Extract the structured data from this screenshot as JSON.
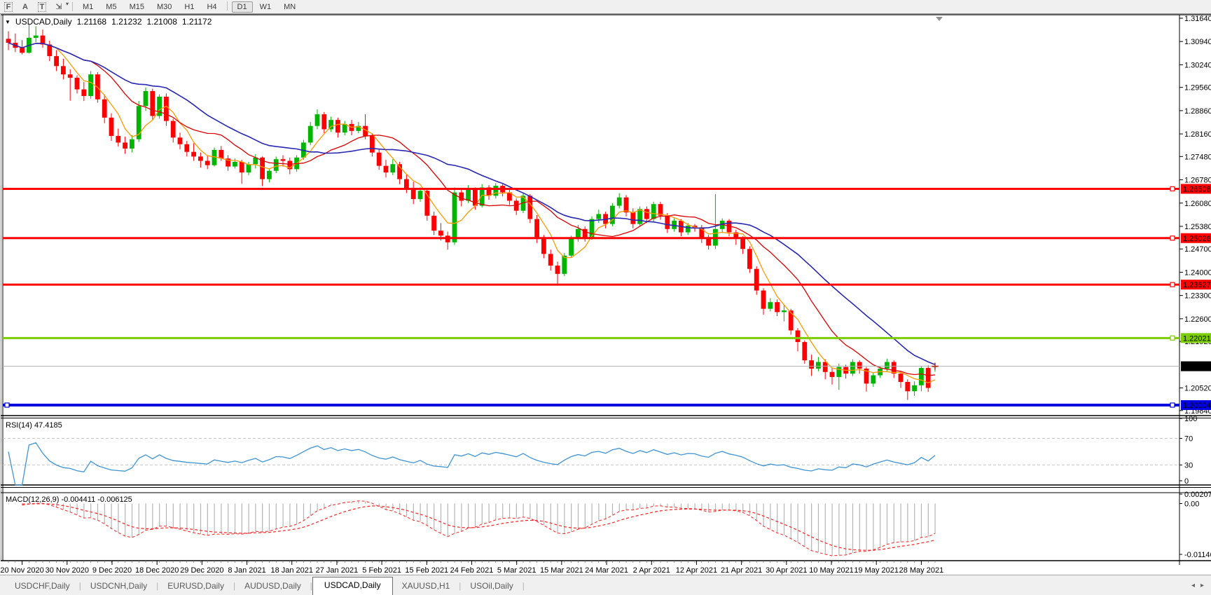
{
  "toolbar": {
    "tools": [
      {
        "name": "fibonacci-tool",
        "glyph": "F"
      },
      {
        "name": "text-tool",
        "glyph": "A"
      },
      {
        "name": "label-tool",
        "glyph": "T"
      },
      {
        "name": "arrows-tool",
        "glyph": "⇲"
      }
    ],
    "dropdown_glyph": "▾",
    "timeframes": [
      "M1",
      "M5",
      "M15",
      "M30",
      "H1",
      "H4",
      "D1",
      "W1",
      "MN"
    ],
    "active_timeframe": "D1"
  },
  "chart_header": {
    "dropdown_glyph": "▼",
    "symbol": "USDCAD,Daily",
    "open": "1.21168",
    "high": "1.21232",
    "low": "1.21008",
    "close": "1.21172"
  },
  "indicator_labels": {
    "rsi": "RSI(14) 47.4185",
    "macd": "MACD(12,26,9) -0.004411 -0.006125"
  },
  "tabs": {
    "items": [
      "USDCHF,Daily",
      "USDCNH,Daily",
      "EURUSD,Daily",
      "AUDUSD,Daily",
      "USDCAD,Daily",
      "XAUUSD,H1",
      "USOil,Daily"
    ],
    "active": "USDCAD,Daily",
    "scroll_left_glyph": "◂",
    "scroll_right_glyph": "▸"
  },
  "chart_data": {
    "type": "candlestick",
    "symbol": "USDCAD",
    "timeframe": "Daily",
    "ylim": [
      1.19697,
      1.31757
    ],
    "price_ticks": [
      "1.31640",
      "1.30940",
      "1.30240",
      "1.29560",
      "1.28860",
      "1.28160",
      "1.27480",
      "1.26780",
      "1.26080",
      "1.25380",
      "1.24700",
      "1.24000",
      "1.23300",
      "1.22600",
      "1.21920",
      "1.20520",
      "1.19840"
    ],
    "x_axis_labels": [
      "20 Nov 2020",
      "30 Nov 2020",
      "9 Dec 2020",
      "18 Dec 2020",
      "29 Dec 2020",
      "8 Jan 2021",
      "18 Jan 2021",
      "27 Jan 2021",
      "5 Feb 2021",
      "15 Feb 2021",
      "24 Feb 2021",
      "5 Mar 2021",
      "15 Mar 2021",
      "24 Mar 2021",
      "2 Apr 2021",
      "12 Apr 2021",
      "21 Apr 2021",
      "30 Apr 2021",
      "10 May 2021",
      "19 May 2021",
      "28 May 2021"
    ],
    "levels": [
      {
        "price": 1.26508,
        "label": "1.26508",
        "color": "#fe0000",
        "width": 3
      },
      {
        "price": 1.25026,
        "label": "1.25026",
        "color": "#fe0000",
        "width": 3
      },
      {
        "price": 1.23627,
        "label": "1.23627",
        "color": "#fe0000",
        "width": 3
      },
      {
        "price": 1.22021,
        "label": "1.22021",
        "color": "#7ccd00",
        "width": 3
      },
      {
        "price": 1.20004,
        "label": "1.20004",
        "color": "#0000e0",
        "width": 4
      }
    ],
    "current_price": {
      "value": 1.21172,
      "label": "1.21172"
    },
    "candles": [
      [
        1.3102,
        1.3125,
        1.3068,
        1.309
      ],
      [
        1.309,
        1.3118,
        1.3062,
        1.3075
      ],
      [
        1.3075,
        1.3098,
        1.3055,
        1.306
      ],
      [
        1.306,
        1.3145,
        1.3058,
        1.3105
      ],
      [
        1.3105,
        1.314,
        1.3092,
        1.3112
      ],
      [
        1.3112,
        1.313,
        1.3075,
        1.3085
      ],
      [
        1.3085,
        1.3096,
        1.3035,
        1.305
      ],
      [
        1.305,
        1.3068,
        1.3005,
        1.302
      ],
      [
        1.302,
        1.3042,
        1.298,
        1.2995
      ],
      [
        1.2995,
        1.301,
        1.2916,
        1.2985
      ],
      [
        1.2985,
        1.2992,
        1.2938,
        1.295
      ],
      [
        1.295,
        1.2972,
        1.2915,
        1.293
      ],
      [
        1.293,
        1.3005,
        1.2922,
        1.2995
      ],
      [
        1.2995,
        1.3002,
        1.291,
        1.292
      ],
      [
        1.292,
        1.2935,
        1.2848,
        1.2865
      ],
      [
        1.2865,
        1.2878,
        1.2795,
        1.281
      ],
      [
        1.281,
        1.2832,
        1.2778,
        1.279
      ],
      [
        1.279,
        1.2808,
        1.2756,
        1.2772
      ],
      [
        1.2772,
        1.2812,
        1.276,
        1.28
      ],
      [
        1.28,
        1.2915,
        1.2792,
        1.29
      ],
      [
        1.29,
        1.2956,
        1.2885,
        1.2945
      ],
      [
        1.2945,
        1.2952,
        1.2858,
        1.287
      ],
      [
        1.287,
        1.2935,
        1.2862,
        1.2928
      ],
      [
        1.2928,
        1.2938,
        1.284,
        1.2855
      ],
      [
        1.2855,
        1.2862,
        1.279,
        1.2805
      ],
      [
        1.2805,
        1.282,
        1.277,
        1.2785
      ],
      [
        1.2785,
        1.2795,
        1.2748,
        1.2762
      ],
      [
        1.2762,
        1.2788,
        1.2735,
        1.2748
      ],
      [
        1.2748,
        1.276,
        1.2715,
        1.2735
      ],
      [
        1.2735,
        1.2752,
        1.271,
        1.2722
      ],
      [
        1.2722,
        1.2775,
        1.2718,
        1.2768
      ],
      [
        1.2768,
        1.278,
        1.2735,
        1.2742
      ],
      [
        1.2742,
        1.2752,
        1.2705,
        1.2718
      ],
      [
        1.2718,
        1.2742,
        1.2712,
        1.2732
      ],
      [
        1.2732,
        1.2738,
        1.2666,
        1.27
      ],
      [
        1.27,
        1.2732,
        1.2692,
        1.2725
      ],
      [
        1.2725,
        1.2755,
        1.2712,
        1.2745
      ],
      [
        1.2745,
        1.2748,
        1.2659,
        1.268
      ],
      [
        1.268,
        1.2712,
        1.267,
        1.2705
      ],
      [
        1.2705,
        1.2748,
        1.2698,
        1.274
      ],
      [
        1.274,
        1.2752,
        1.2718,
        1.2735
      ],
      [
        1.2735,
        1.2745,
        1.2695,
        1.271
      ],
      [
        1.271,
        1.2752,
        1.2702,
        1.2745
      ],
      [
        1.2745,
        1.2798,
        1.2738,
        1.279
      ],
      [
        1.279,
        1.2852,
        1.2782,
        1.284
      ],
      [
        1.284,
        1.289,
        1.283,
        1.2875
      ],
      [
        1.2875,
        1.2882,
        1.2818,
        1.283
      ],
      [
        1.283,
        1.2868,
        1.2822,
        1.2858
      ],
      [
        1.2858,
        1.2865,
        1.2805,
        1.282
      ],
      [
        1.282,
        1.2855,
        1.2812,
        1.2846
      ],
      [
        1.2846,
        1.2858,
        1.2812,
        1.2825
      ],
      [
        1.2825,
        1.2852,
        1.2818,
        1.284
      ],
      [
        1.284,
        1.2875,
        1.28,
        1.281
      ],
      [
        1.281,
        1.2818,
        1.2748,
        1.276
      ],
      [
        1.276,
        1.2772,
        1.2708,
        1.272
      ],
      [
        1.272,
        1.2738,
        1.2685,
        1.27
      ],
      [
        1.27,
        1.274,
        1.2692,
        1.2725
      ],
      [
        1.2725,
        1.2732,
        1.2665,
        1.268
      ],
      [
        1.268,
        1.2695,
        1.2638,
        1.265
      ],
      [
        1.265,
        1.2672,
        1.2605,
        1.262
      ],
      [
        1.262,
        1.2655,
        1.2612,
        1.2645
      ],
      [
        1.2645,
        1.265,
        1.2555,
        1.257
      ],
      [
        1.257,
        1.2582,
        1.2512,
        1.2525
      ],
      [
        1.2525,
        1.2548,
        1.2495,
        1.251
      ],
      [
        1.251,
        1.2522,
        1.2468,
        1.249
      ],
      [
        1.249,
        1.2655,
        1.2482,
        1.264
      ],
      [
        1.264,
        1.2652,
        1.2598,
        1.2615
      ],
      [
        1.2615,
        1.2662,
        1.2608,
        1.265
      ],
      [
        1.265,
        1.2655,
        1.2588,
        1.26
      ],
      [
        1.26,
        1.2665,
        1.2595,
        1.2655
      ],
      [
        1.2655,
        1.2662,
        1.2618,
        1.263
      ],
      [
        1.263,
        1.2668,
        1.2622,
        1.266
      ],
      [
        1.266,
        1.2665,
        1.2628,
        1.264
      ],
      [
        1.264,
        1.2648,
        1.2602,
        1.2615
      ],
      [
        1.2615,
        1.2622,
        1.2572,
        1.2585
      ],
      [
        1.2585,
        1.2638,
        1.2578,
        1.263
      ],
      [
        1.263,
        1.2635,
        1.2548,
        1.256
      ],
      [
        1.256,
        1.2572,
        1.2488,
        1.25
      ],
      [
        1.25,
        1.2512,
        1.2442,
        1.2455
      ],
      [
        1.2455,
        1.2468,
        1.2405,
        1.242
      ],
      [
        1.242,
        1.2432,
        1.2363,
        1.2395
      ],
      [
        1.2395,
        1.2458,
        1.2388,
        1.245
      ],
      [
        1.245,
        1.251,
        1.2445,
        1.25
      ],
      [
        1.25,
        1.2542,
        1.2492,
        1.253
      ],
      [
        1.253,
        1.2538,
        1.2492,
        1.2505
      ],
      [
        1.2505,
        1.2568,
        1.2498,
        1.256
      ],
      [
        1.256,
        1.2588,
        1.2548,
        1.2575
      ],
      [
        1.2575,
        1.2582,
        1.2532,
        1.2545
      ],
      [
        1.2545,
        1.2608,
        1.2538,
        1.26
      ],
      [
        1.26,
        1.2638,
        1.2592,
        1.2625
      ],
      [
        1.2625,
        1.2632,
        1.2568,
        1.258
      ],
      [
        1.258,
        1.2592,
        1.2532,
        1.2545
      ],
      [
        1.2545,
        1.2598,
        1.2538,
        1.259
      ],
      [
        1.259,
        1.2598,
        1.2548,
        1.256
      ],
      [
        1.256,
        1.2612,
        1.2552,
        1.2605
      ],
      [
        1.2605,
        1.2612,
        1.2558,
        1.257
      ],
      [
        1.257,
        1.2578,
        1.2518,
        1.253
      ],
      [
        1.253,
        1.2562,
        1.2522,
        1.2555
      ],
      [
        1.2555,
        1.256,
        1.2508,
        1.252
      ],
      [
        1.252,
        1.2548,
        1.2512,
        1.254
      ],
      [
        1.254,
        1.2545,
        1.2522,
        1.2535
      ],
      [
        1.2535,
        1.2542,
        1.2488,
        1.25
      ],
      [
        1.25,
        1.2512,
        1.2468,
        1.248
      ],
      [
        1.248,
        1.2635,
        1.247,
        1.253
      ],
      [
        1.253,
        1.2562,
        1.2518,
        1.2555
      ],
      [
        1.2555,
        1.256,
        1.2508,
        1.252
      ],
      [
        1.252,
        1.2528,
        1.2482,
        1.25
      ],
      [
        1.25,
        1.2508,
        1.2455,
        1.247
      ],
      [
        1.247,
        1.2478,
        1.2398,
        1.241
      ],
      [
        1.241,
        1.2418,
        1.2332,
        1.2345
      ],
      [
        1.2345,
        1.2352,
        1.2272,
        1.229
      ],
      [
        1.229,
        1.2322,
        1.2282,
        1.231
      ],
      [
        1.231,
        1.2318,
        1.2268,
        1.228
      ],
      [
        1.228,
        1.2302,
        1.2252,
        1.2285
      ],
      [
        1.2285,
        1.229,
        1.2212,
        1.2225
      ],
      [
        1.2225,
        1.2232,
        1.2162,
        1.219
      ],
      [
        1.219,
        1.2195,
        1.2125,
        1.2135
      ],
      [
        1.2135,
        1.2152,
        1.2088,
        1.211
      ],
      [
        1.211,
        1.2145,
        1.2102,
        1.213
      ],
      [
        1.213,
        1.2138,
        1.2078,
        1.21
      ],
      [
        1.21,
        1.2112,
        1.2062,
        1.2085
      ],
      [
        1.2085,
        1.2125,
        1.2046,
        1.2115
      ],
      [
        1.2115,
        1.2122,
        1.208,
        1.2095
      ],
      [
        1.2095,
        1.2138,
        1.2088,
        1.213
      ],
      [
        1.213,
        1.2135,
        1.2095,
        1.211
      ],
      [
        1.211,
        1.2115,
        1.2041,
        1.2065
      ],
      [
        1.2065,
        1.2098,
        1.2055,
        1.209
      ],
      [
        1.209,
        1.2118,
        1.2082,
        1.211
      ],
      [
        1.211,
        1.214,
        1.2102,
        1.213
      ],
      [
        1.213,
        1.2135,
        1.2082,
        1.2095
      ],
      [
        1.2095,
        1.2102,
        1.2052,
        1.207
      ],
      [
        1.207,
        1.2078,
        1.2016,
        1.2042
      ],
      [
        1.2042,
        1.2072,
        1.2028,
        1.206
      ],
      [
        1.206,
        1.2118,
        1.2042,
        1.2112
      ],
      [
        1.2112,
        1.212,
        1.204,
        1.2052
      ],
      [
        1.21168,
        1.21232,
        1.21008,
        1.21172
      ]
    ],
    "indicators": {
      "moving_averages": [
        {
          "name": "ma-fast",
          "color": "#ff9900"
        },
        {
          "name": "ma-medium",
          "color": "#dd0000"
        },
        {
          "name": "ma-slow",
          "color": "#2828b4"
        }
      ],
      "rsi": {
        "period": 14,
        "value": 47.4185,
        "range": [
          0,
          100
        ],
        "guides": [
          70,
          30
        ],
        "axis_labels": [
          "100",
          "70",
          "30",
          "0"
        ]
      },
      "macd": {
        "fast": 12,
        "slow": 26,
        "signal": 9,
        "value_main": -0.004411,
        "value_signal": -0.006125,
        "axis_top": "0.002074",
        "axis_zero": "0.00",
        "axis_bottom": "-0.011462"
      }
    },
    "colors": {
      "up": "#00b400",
      "down": "#ff0000",
      "rsi_line": "#3f94d6",
      "rsi_guide": "#c8c8c8",
      "macd_hist": "#b4b4b4",
      "macd_signal": "#ff2020",
      "current_line": "#b0b0b0",
      "current_label_bg": "#000000",
      "shift_marker": "#909090",
      "last_price_cross": "#c03030"
    }
  }
}
